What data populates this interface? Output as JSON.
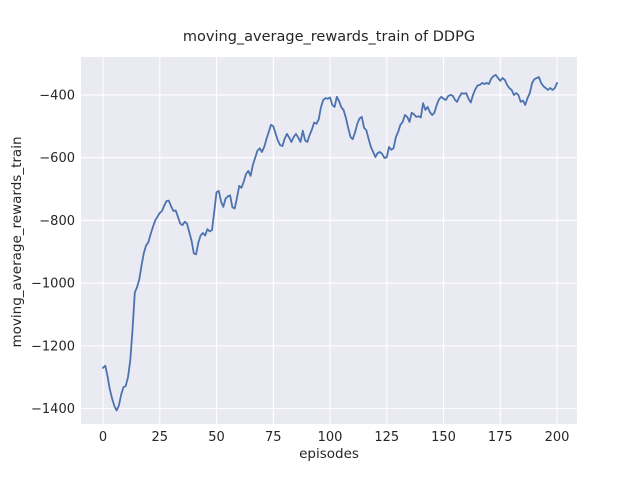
{
  "figure": {
    "title": "moving_average_rewards_train of DDPG",
    "xlabel": "episodes",
    "ylabel": "moving_average_rewards_train"
  },
  "chart_data": {
    "type": "line",
    "title": "moving_average_rewards_train of DDPG",
    "xlabel": "episodes",
    "ylabel": "moving_average_rewards_train",
    "series_name": "moving_average_rewards_train",
    "style": "seaborn-darkgrid",
    "grid": true,
    "legend": null,
    "line_color": "#4c72b0",
    "axes_bg_color": "#eaeaf2",
    "grid_color": "#ffffff",
    "text_color": "#262626",
    "xlim": [
      -9.7,
      208.8
    ],
    "ylim": [
      -1449,
      -279
    ],
    "xticks": [
      0,
      25,
      50,
      75,
      100,
      125,
      150,
      175,
      200
    ],
    "yticks": [
      -1400,
      -1200,
      -1000,
      -800,
      -600,
      -400
    ],
    "x": [
      0,
      1,
      2,
      3,
      4,
      5,
      6,
      7,
      8,
      9,
      10,
      11,
      12,
      13,
      14,
      15,
      16,
      17,
      18,
      19,
      20,
      21,
      22,
      23,
      24,
      25,
      26,
      27,
      28,
      29,
      30,
      31,
      32,
      33,
      34,
      35,
      36,
      37,
      38,
      39,
      40,
      41,
      42,
      43,
      44,
      45,
      46,
      47,
      48,
      49,
      50,
      51,
      52,
      53,
      54,
      55,
      56,
      57,
      58,
      59,
      60,
      61,
      62,
      63,
      64,
      65,
      66,
      67,
      68,
      69,
      70,
      71,
      72,
      73,
      74,
      75,
      76,
      77,
      78,
      79,
      80,
      81,
      82,
      83,
      84,
      85,
      86,
      87,
      88,
      89,
      90,
      91,
      92,
      93,
      94,
      95,
      96,
      97,
      98,
      99,
      100,
      101,
      102,
      103,
      104,
      105,
      106,
      107,
      108,
      109,
      110,
      111,
      112,
      113,
      114,
      115,
      116,
      117,
      118,
      119,
      120,
      121,
      122,
      123,
      124,
      125,
      126,
      127,
      128,
      129,
      130,
      131,
      132,
      133,
      134,
      135,
      136,
      137,
      138,
      139,
      140,
      141,
      142,
      143,
      144,
      145,
      146,
      147,
      148,
      149,
      150,
      151,
      152,
      153,
      154,
      155,
      156,
      157,
      158,
      159,
      160,
      161,
      162,
      163,
      164,
      165,
      166,
      167,
      168,
      169,
      170,
      171,
      172,
      173,
      174,
      175,
      176,
      177,
      178,
      179,
      180,
      181,
      182,
      183,
      184,
      185,
      186,
      187,
      188,
      189,
      190,
      191,
      192,
      193,
      194,
      195,
      196,
      197,
      198,
      199,
      200
    ],
    "y": [
      -1270,
      -1263,
      -1298,
      -1338,
      -1368,
      -1392,
      -1406,
      -1390,
      -1355,
      -1332,
      -1328,
      -1300,
      -1245,
      -1150,
      -1030,
      -1012,
      -988,
      -942,
      -903,
      -880,
      -869,
      -843,
      -820,
      -800,
      -788,
      -776,
      -770,
      -752,
      -738,
      -737,
      -755,
      -770,
      -768,
      -788,
      -810,
      -815,
      -804,
      -810,
      -838,
      -865,
      -905,
      -908,
      -870,
      -848,
      -840,
      -848,
      -828,
      -835,
      -831,
      -770,
      -710,
      -706,
      -740,
      -757,
      -730,
      -723,
      -720,
      -758,
      -762,
      -728,
      -690,
      -696,
      -676,
      -652,
      -642,
      -658,
      -624,
      -601,
      -578,
      -570,
      -582,
      -566,
      -540,
      -518,
      -495,
      -500,
      -522,
      -545,
      -560,
      -563,
      -540,
      -524,
      -536,
      -550,
      -534,
      -524,
      -536,
      -550,
      -514,
      -545,
      -550,
      -528,
      -510,
      -488,
      -492,
      -478,
      -440,
      -416,
      -410,
      -412,
      -408,
      -432,
      -438,
      -406,
      -420,
      -440,
      -448,
      -473,
      -505,
      -534,
      -541,
      -520,
      -492,
      -475,
      -470,
      -505,
      -512,
      -540,
      -566,
      -582,
      -598,
      -585,
      -582,
      -588,
      -601,
      -598,
      -566,
      -575,
      -569,
      -534,
      -518,
      -495,
      -486,
      -464,
      -470,
      -486,
      -457,
      -462,
      -470,
      -468,
      -472,
      -426,
      -448,
      -438,
      -455,
      -464,
      -457,
      -432,
      -414,
      -406,
      -412,
      -416,
      -404,
      -400,
      -402,
      -415,
      -422,
      -406,
      -394,
      -396,
      -394,
      -412,
      -424,
      -400,
      -382,
      -370,
      -368,
      -362,
      -365,
      -362,
      -365,
      -348,
      -340,
      -336,
      -346,
      -355,
      -346,
      -352,
      -368,
      -378,
      -384,
      -400,
      -394,
      -400,
      -422,
      -418,
      -432,
      -410,
      -394,
      -362,
      -350,
      -346,
      -343,
      -362,
      -372,
      -378,
      -384,
      -378,
      -384,
      -378,
      -362
    ]
  }
}
